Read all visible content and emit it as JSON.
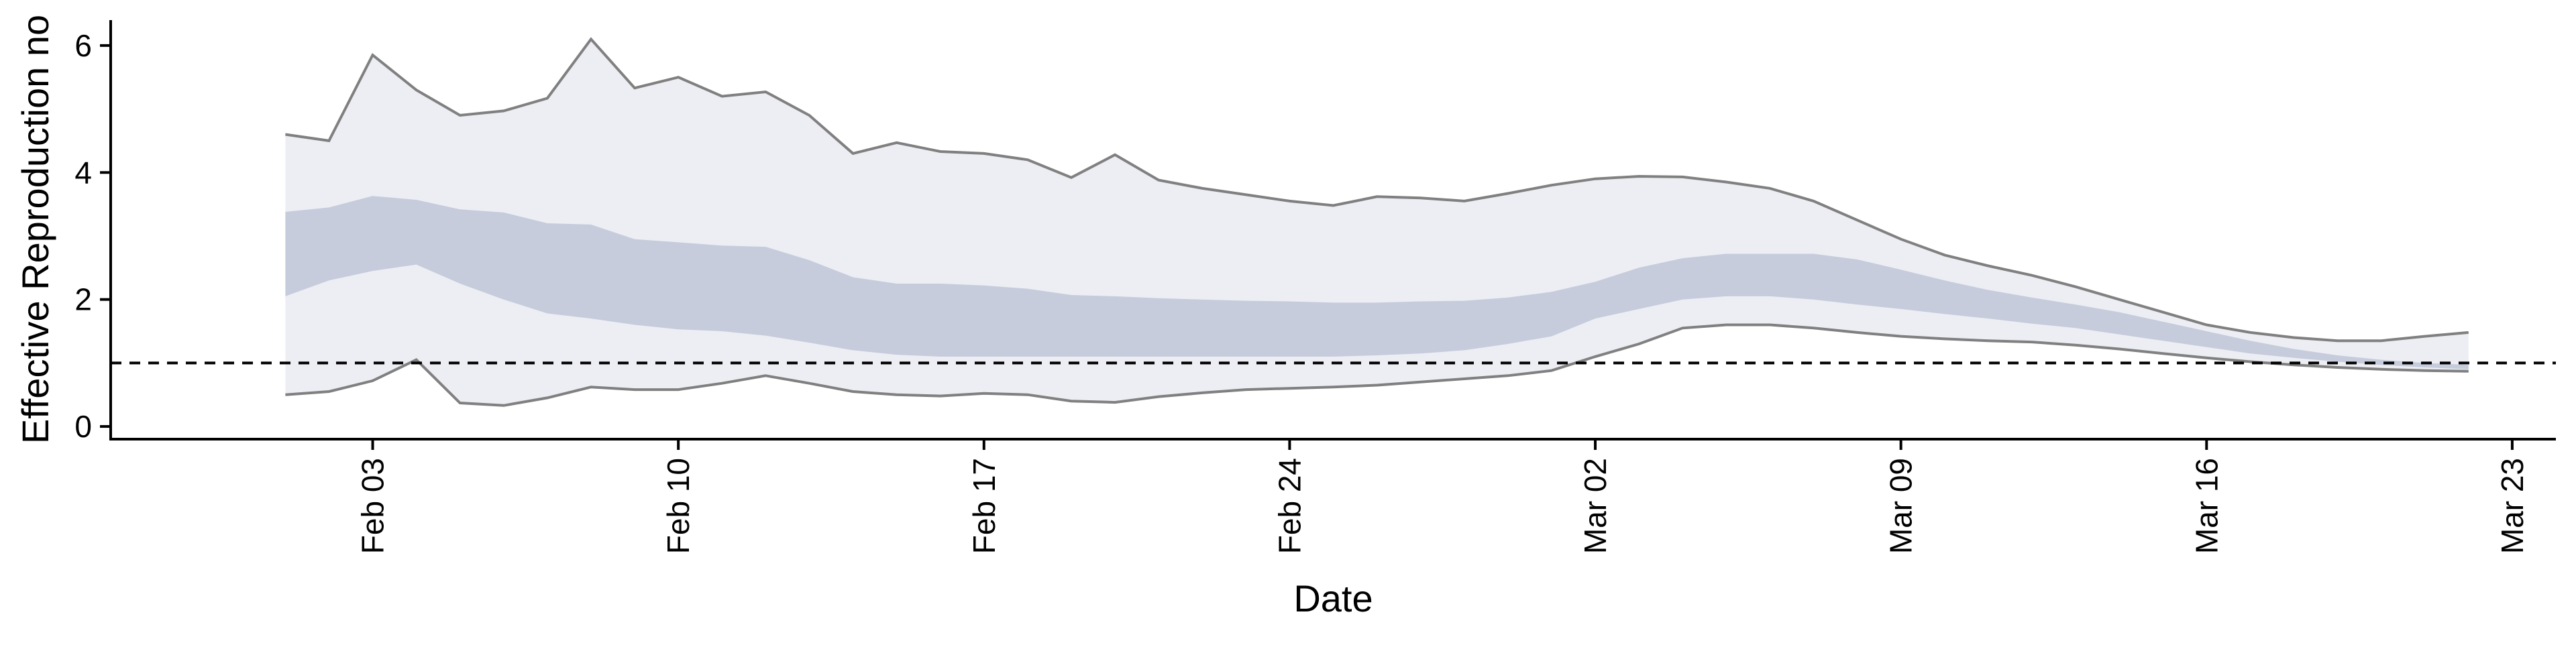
{
  "chart_data": {
    "type": "area",
    "xlabel": "Date",
    "ylabel": "Effective Reproduction no",
    "x_type": "date",
    "xlim": [
      "2020-01-28",
      "2020-03-24"
    ],
    "ylim": [
      -0.2,
      6.4
    ],
    "y_ticks": [
      0,
      2,
      4,
      6
    ],
    "x_ticks": [
      {
        "date": "2020-02-03",
        "label": "Feb 03"
      },
      {
        "date": "2020-02-10",
        "label": "Feb 10"
      },
      {
        "date": "2020-02-17",
        "label": "Feb 17"
      },
      {
        "date": "2020-02-24",
        "label": "Feb 24"
      },
      {
        "date": "2020-03-02",
        "label": "Mar 02"
      },
      {
        "date": "2020-03-09",
        "label": "Mar 09"
      },
      {
        "date": "2020-03-16",
        "label": "Mar 16"
      },
      {
        "date": "2020-03-23",
        "label": "Mar 23"
      }
    ],
    "reference_line": {
      "y": 1,
      "style": "dashed"
    },
    "grid": false,
    "colors": {
      "outer_band": "#eceef3",
      "inner_band": "#c6ccdc",
      "bound_line": "#808080",
      "reference_line": "#000000"
    },
    "x": [
      "2020-02-01",
      "2020-02-02",
      "2020-02-03",
      "2020-02-04",
      "2020-02-05",
      "2020-02-06",
      "2020-02-07",
      "2020-02-08",
      "2020-02-09",
      "2020-02-10",
      "2020-02-11",
      "2020-02-12",
      "2020-02-13",
      "2020-02-14",
      "2020-02-15",
      "2020-02-16",
      "2020-02-17",
      "2020-02-18",
      "2020-02-19",
      "2020-02-20",
      "2020-02-21",
      "2020-02-22",
      "2020-02-23",
      "2020-02-24",
      "2020-02-25",
      "2020-02-26",
      "2020-02-27",
      "2020-02-28",
      "2020-02-29",
      "2020-03-01",
      "2020-03-02",
      "2020-03-03",
      "2020-03-04",
      "2020-03-05",
      "2020-03-06",
      "2020-03-07",
      "2020-03-08",
      "2020-03-09",
      "2020-03-10",
      "2020-03-11",
      "2020-03-12",
      "2020-03-13",
      "2020-03-14",
      "2020-03-15",
      "2020-03-16",
      "2020-03-17",
      "2020-03-18",
      "2020-03-19",
      "2020-03-20",
      "2020-03-21",
      "2020-03-22"
    ],
    "upper": [
      4.6,
      4.5,
      5.85,
      5.3,
      4.9,
      4.97,
      5.17,
      6.1,
      5.33,
      5.5,
      5.2,
      5.27,
      4.9,
      4.3,
      4.47,
      4.33,
      4.3,
      4.2,
      3.92,
      4.28,
      3.88,
      3.75,
      3.65,
      3.55,
      3.48,
      3.62,
      3.6,
      3.55,
      3.67,
      3.8,
      3.9,
      3.94,
      3.93,
      3.85,
      3.75,
      3.55,
      3.25,
      2.95,
      2.7,
      2.53,
      2.38,
      2.2,
      2.0,
      1.8,
      1.6,
      1.48,
      1.4,
      1.35,
      1.35,
      1.42,
      1.48
    ],
    "inner_upper": [
      3.38,
      3.45,
      3.63,
      3.57,
      3.42,
      3.37,
      3.2,
      3.18,
      2.95,
      2.9,
      2.85,
      2.83,
      2.62,
      2.35,
      2.25,
      2.25,
      2.22,
      2.17,
      2.07,
      2.05,
      2.02,
      2.0,
      1.98,
      1.97,
      1.95,
      1.95,
      1.97,
      1.98,
      2.03,
      2.12,
      2.28,
      2.5,
      2.65,
      2.72,
      2.72,
      2.72,
      2.63,
      2.47,
      2.3,
      2.15,
      2.03,
      1.92,
      1.8,
      1.65,
      1.5,
      1.35,
      1.22,
      1.12,
      1.05,
      1.0,
      0.97
    ],
    "inner_lower": [
      2.05,
      2.3,
      2.45,
      2.55,
      2.25,
      2.0,
      1.78,
      1.7,
      1.6,
      1.53,
      1.5,
      1.43,
      1.32,
      1.2,
      1.13,
      1.1,
      1.1,
      1.1,
      1.1,
      1.1,
      1.1,
      1.1,
      1.1,
      1.1,
      1.1,
      1.12,
      1.15,
      1.2,
      1.3,
      1.42,
      1.7,
      1.85,
      2.0,
      2.05,
      2.05,
      2.0,
      1.92,
      1.85,
      1.77,
      1.7,
      1.62,
      1.55,
      1.45,
      1.35,
      1.25,
      1.15,
      1.08,
      1.02,
      0.97,
      0.93,
      0.9
    ],
    "lower": [
      0.5,
      0.55,
      0.72,
      1.05,
      0.37,
      0.33,
      0.45,
      0.62,
      0.58,
      0.58,
      0.68,
      0.8,
      0.68,
      0.55,
      0.5,
      0.48,
      0.52,
      0.5,
      0.4,
      0.38,
      0.47,
      0.53,
      0.58,
      0.6,
      0.62,
      0.65,
      0.7,
      0.75,
      0.8,
      0.88,
      1.1,
      1.3,
      1.55,
      1.6,
      1.6,
      1.55,
      1.48,
      1.42,
      1.38,
      1.35,
      1.33,
      1.28,
      1.22,
      1.15,
      1.08,
      1.02,
      0.97,
      0.93,
      0.9,
      0.88,
      0.87
    ]
  }
}
